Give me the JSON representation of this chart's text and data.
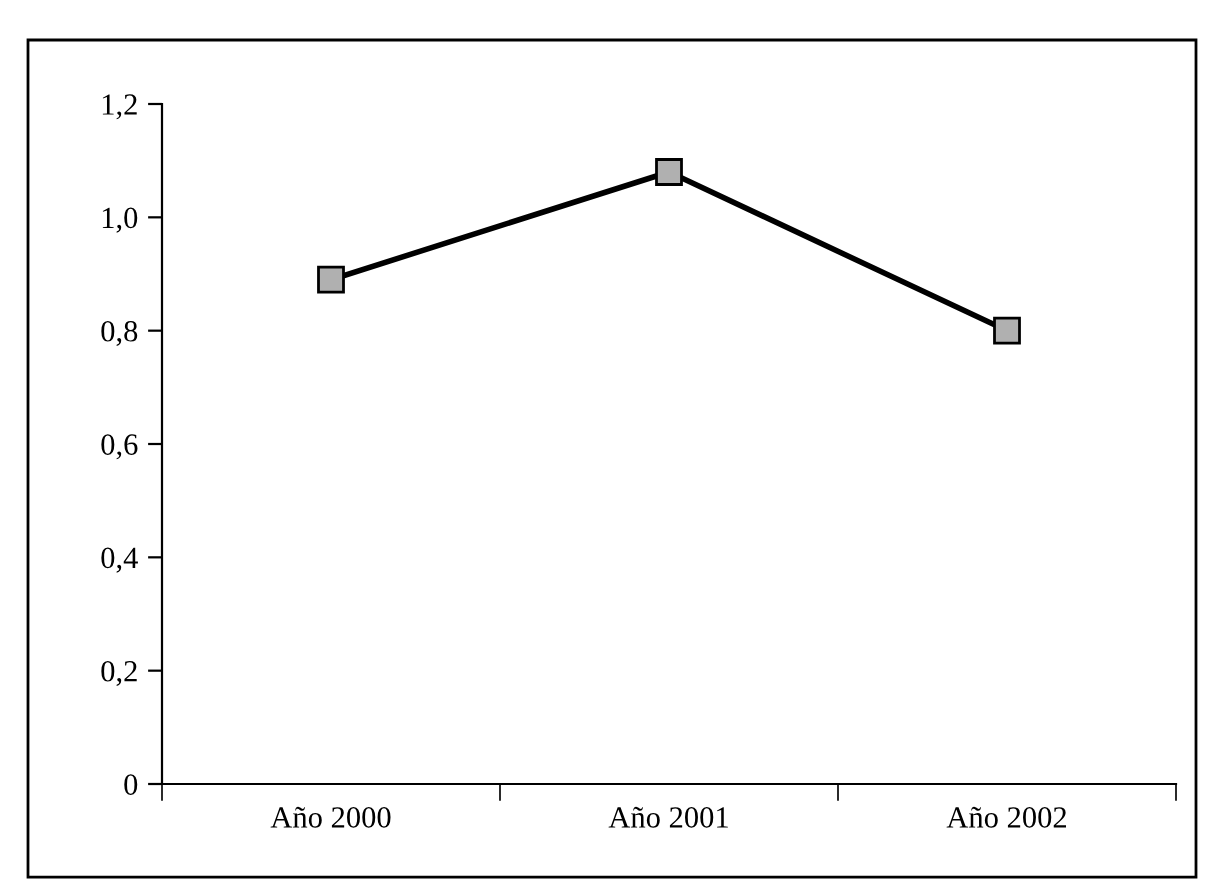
{
  "chart_data": {
    "type": "line",
    "categories": [
      "Año 2000",
      "Año 2001",
      "Año 2002"
    ],
    "series": [
      {
        "color": "#000000",
        "values": [
          0.89,
          1.08,
          0.8
        ]
      }
    ],
    "marker": "square",
    "line_style": "solid",
    "ylim": [
      0,
      1.2
    ],
    "yticks": [
      0,
      {
        "value": 0.2,
        "label": "0,2"
      },
      {
        "value": 0.4,
        "label": "0,4"
      },
      {
        "value": 0.6,
        "label": "0,6"
      },
      {
        "value": 0.8,
        "label": "0,8"
      },
      {
        "value": 1.0,
        "label": "1,0"
      },
      {
        "value": 1.2,
        "label": "1,2"
      }
    ],
    "grid": false
  }
}
